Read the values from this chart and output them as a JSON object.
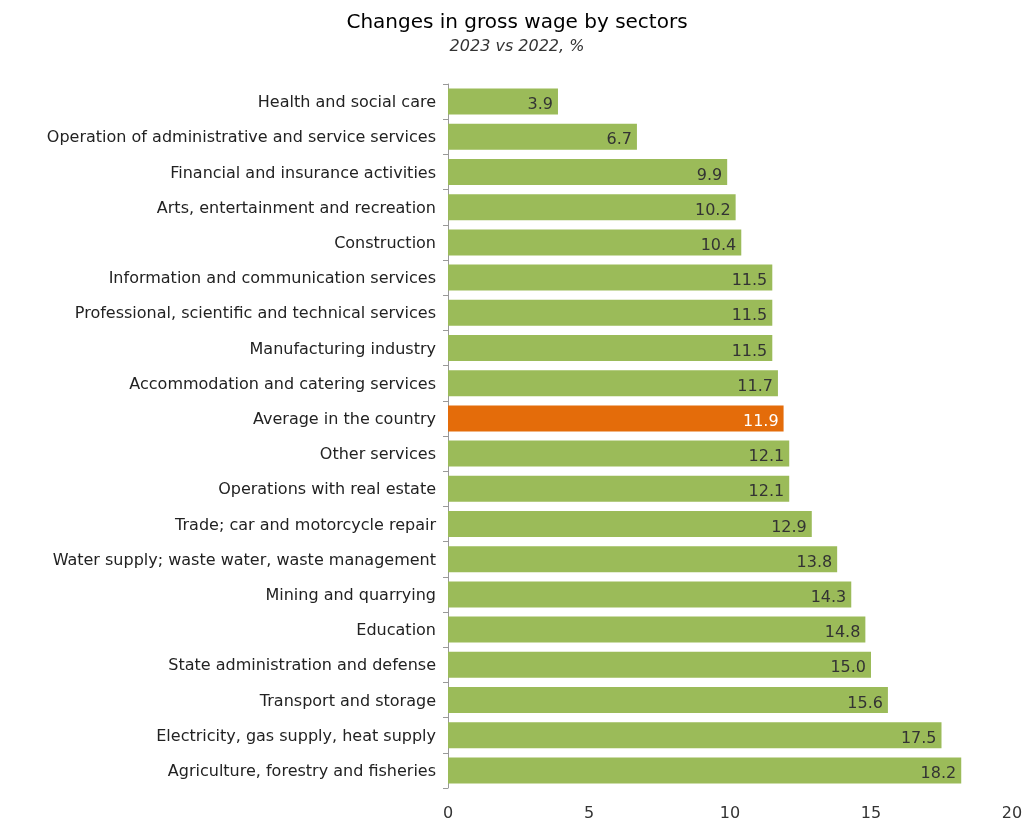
{
  "chart_data": {
    "type": "bar",
    "orientation": "horizontal",
    "title": "Changes in gross wage by sectors",
    "subtitle": "2023 vs 2022, %",
    "categories": [
      "Health and social care",
      "Operation of administrative and service services",
      "Financial and insurance activities",
      "Arts, entertainment and recreation",
      "Construction",
      "Information and communication services",
      "Professional, scientific and technical services",
      "Manufacturing industry",
      "Accommodation and catering services",
      "Average in the country",
      "Other services",
      "Operations with real estate",
      "Trade; car and motorcycle repair",
      "Water supply; waste water, waste management",
      "Mining and quarrying",
      "Education",
      "State administration and defense",
      "Transport and storage",
      "Electricity, gas supply, heat supply",
      "Agriculture, forestry and fisheries"
    ],
    "values": [
      3.9,
      6.7,
      9.9,
      10.2,
      10.4,
      11.5,
      11.5,
      11.5,
      11.7,
      11.9,
      12.1,
      12.1,
      12.9,
      13.8,
      14.3,
      14.8,
      15.0,
      15.6,
      17.5,
      18.2
    ],
    "value_labels": [
      "3.9",
      "6.7",
      "9.9",
      "10.2",
      "10.4",
      "11.5",
      "11.5",
      "11.5",
      "11.7",
      "11.9",
      "12.1",
      "12.1",
      "12.9",
      "13.8",
      "14.3",
      "14.8",
      "15.0",
      "15.6",
      "17.5",
      "18.2"
    ],
    "colors": [
      "#9bbb59",
      "#9bbb59",
      "#9bbb59",
      "#9bbb59",
      "#9bbb59",
      "#9bbb59",
      "#9bbb59",
      "#9bbb59",
      "#9bbb59",
      "#e46c0a",
      "#9bbb59",
      "#9bbb59",
      "#9bbb59",
      "#9bbb59",
      "#9bbb59",
      "#9bbb59",
      "#9bbb59",
      "#9bbb59",
      "#9bbb59",
      "#9bbb59"
    ],
    "xlim": [
      0,
      20
    ],
    "xticks": [
      0,
      5,
      10,
      15,
      20
    ],
    "grid": false
  }
}
